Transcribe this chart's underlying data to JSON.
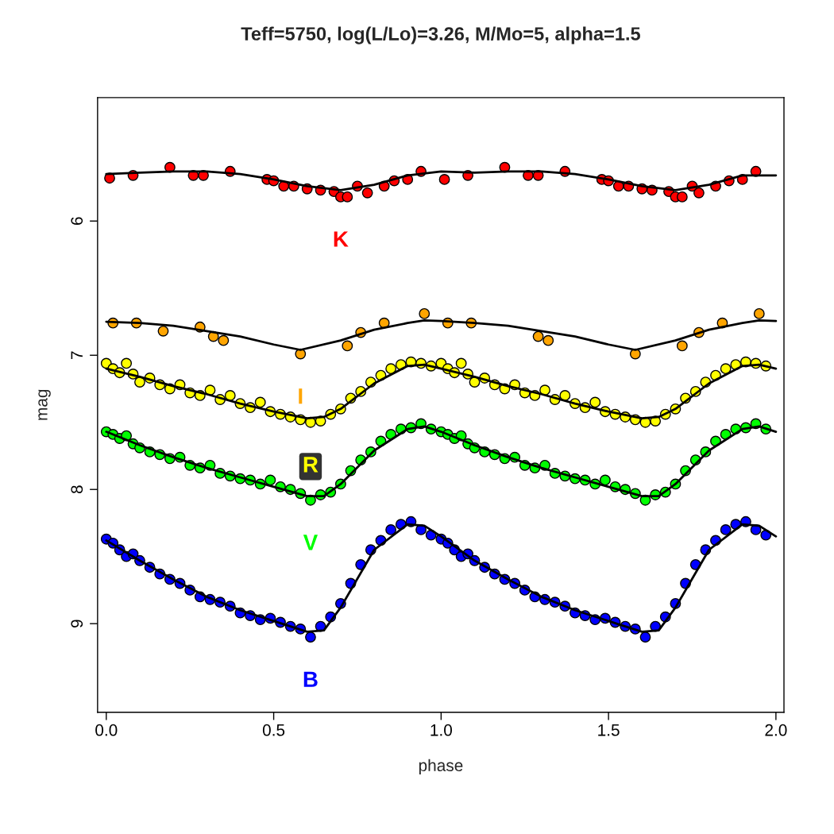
{
  "chart_data": {
    "type": "scatter",
    "title": "Teff=5750, log(L/Lo)=3.26, M/Mo=5, alpha=1.5",
    "xlabel": "phase",
    "ylabel": "mag",
    "xlim": [
      -0.026,
      2.024
    ],
    "ylim": [
      9.66,
      5.08
    ],
    "xticks": [
      {
        "value": 0,
        "label": "0.0"
      },
      {
        "value": 0.5,
        "label": "0.5"
      },
      {
        "value": 1,
        "label": "1.0"
      },
      {
        "value": 1.5,
        "label": "1.5"
      },
      {
        "value": 2,
        "label": "2.0"
      }
    ],
    "yticks": [
      6,
      7,
      8,
      9
    ],
    "grid": false,
    "legend": false,
    "series": [
      {
        "name": "K",
        "marker": "circle",
        "color": "#ff0000",
        "x": [
          0.01,
          0.08,
          0.19,
          0.26,
          0.29,
          0.37,
          0.48,
          0.5,
          0.53,
          0.56,
          0.6,
          0.64,
          0.68,
          0.7,
          0.72,
          0.75,
          0.78,
          0.83,
          0.86,
          0.9,
          0.94,
          1.01,
          1.08,
          1.19,
          1.26,
          1.29,
          1.37,
          1.48,
          1.5,
          1.53,
          1.56,
          1.6,
          1.63,
          1.68,
          1.7,
          1.72,
          1.75,
          1.77,
          1.82,
          1.86,
          1.9,
          1.94
        ],
        "values": [
          5.68,
          5.66,
          5.6,
          5.66,
          5.66,
          5.63,
          5.69,
          5.7,
          5.74,
          5.74,
          5.76,
          5.77,
          5.78,
          5.82,
          5.82,
          5.74,
          5.79,
          5.74,
          5.7,
          5.69,
          5.63,
          5.69,
          5.66,
          5.6,
          5.66,
          5.66,
          5.63,
          5.69,
          5.7,
          5.74,
          5.74,
          5.76,
          5.77,
          5.78,
          5.82,
          5.82,
          5.74,
          5.79,
          5.74,
          5.7,
          5.69,
          5.63
        ]
      },
      {
        "type": "line",
        "color": "#000000",
        "x": [
          0,
          0.1,
          0.2,
          0.3,
          0.4,
          0.5,
          0.6,
          0.7,
          0.8,
          0.9,
          1.0,
          1.1,
          1.2,
          1.3,
          1.4,
          1.5,
          1.6,
          1.7,
          1.8,
          1.9,
          2.0
        ],
        "values": [
          5.65,
          5.64,
          5.63,
          5.63,
          5.65,
          5.69,
          5.74,
          5.77,
          5.73,
          5.66,
          5.63,
          5.64,
          5.63,
          5.63,
          5.65,
          5.69,
          5.74,
          5.77,
          5.73,
          5.66,
          5.66
        ]
      },
      {
        "name": "I",
        "marker": "circle",
        "color": "#ffa500",
        "x": [
          0.02,
          0.09,
          0.17,
          0.28,
          0.32,
          0.35,
          0.58,
          0.72,
          0.76,
          0.83,
          0.95,
          1.02,
          1.09,
          1.29,
          1.32,
          1.58,
          1.72,
          1.77,
          1.84,
          1.95
        ],
        "values": [
          6.76,
          6.76,
          6.82,
          6.79,
          6.86,
          6.89,
          6.99,
          6.93,
          6.83,
          6.76,
          6.69,
          6.76,
          6.76,
          6.86,
          6.89,
          6.99,
          6.93,
          6.83,
          6.76,
          6.69
        ]
      },
      {
        "type": "line",
        "color": "#000000",
        "x": [
          0,
          0.1,
          0.2,
          0.3,
          0.4,
          0.5,
          0.58,
          0.7,
          0.8,
          0.9,
          0.95,
          1.0,
          1.1,
          1.2,
          1.3,
          1.4,
          1.5,
          1.58,
          1.7,
          1.8,
          1.9,
          1.95,
          2.0
        ],
        "values": [
          6.75,
          6.76,
          6.78,
          6.82,
          6.86,
          6.92,
          6.96,
          6.89,
          6.81,
          6.76,
          6.74,
          6.745,
          6.76,
          6.78,
          6.82,
          6.86,
          6.92,
          6.96,
          6.89,
          6.81,
          6.76,
          6.74,
          6.745
        ]
      },
      {
        "name": "R",
        "marker": "circle",
        "color": "#ffff00",
        "x": [
          0.0,
          0.02,
          0.04,
          0.06,
          0.08,
          0.1,
          0.13,
          0.16,
          0.19,
          0.22,
          0.25,
          0.28,
          0.31,
          0.34,
          0.37,
          0.4,
          0.43,
          0.46,
          0.49,
          0.52,
          0.55,
          0.58,
          0.61,
          0.64,
          0.67,
          0.7,
          0.73,
          0.76,
          0.79,
          0.82,
          0.85,
          0.88,
          0.91,
          0.94,
          0.97,
          1.0,
          1.02,
          1.04,
          1.06,
          1.08,
          1.1,
          1.13,
          1.16,
          1.19,
          1.22,
          1.25,
          1.28,
          1.31,
          1.34,
          1.37,
          1.4,
          1.43,
          1.46,
          1.49,
          1.52,
          1.55,
          1.58,
          1.61,
          1.64,
          1.67,
          1.7,
          1.73,
          1.76,
          1.79,
          1.82,
          1.85,
          1.88,
          1.91,
          1.94,
          1.97
        ],
        "values": [
          7.06,
          7.1,
          7.13,
          7.06,
          7.14,
          7.2,
          7.17,
          7.22,
          7.25,
          7.22,
          7.28,
          7.3,
          7.26,
          7.33,
          7.3,
          7.36,
          7.39,
          7.35,
          7.42,
          7.44,
          7.46,
          7.48,
          7.5,
          7.49,
          7.44,
          7.4,
          7.32,
          7.27,
          7.2,
          7.15,
          7.1,
          7.07,
          7.05,
          7.06,
          7.08,
          7.06,
          7.1,
          7.13,
          7.06,
          7.14,
          7.2,
          7.17,
          7.22,
          7.25,
          7.22,
          7.28,
          7.3,
          7.26,
          7.33,
          7.3,
          7.36,
          7.39,
          7.35,
          7.42,
          7.44,
          7.46,
          7.48,
          7.5,
          7.49,
          7.44,
          7.4,
          7.32,
          7.27,
          7.2,
          7.15,
          7.1,
          7.07,
          7.05,
          7.06,
          7.08
        ]
      },
      {
        "type": "line",
        "color": "#000000",
        "x": [
          0,
          0.1,
          0.2,
          0.3,
          0.4,
          0.5,
          0.6,
          0.65,
          0.7,
          0.8,
          0.9,
          0.95,
          1.0,
          1.1,
          1.2,
          1.3,
          1.4,
          1.5,
          1.6,
          1.65,
          1.7,
          1.8,
          1.9,
          1.95,
          2.0
        ],
        "values": [
          7.1,
          7.16,
          7.23,
          7.29,
          7.36,
          7.42,
          7.47,
          7.46,
          7.4,
          7.21,
          7.08,
          7.07,
          7.1,
          7.16,
          7.23,
          7.29,
          7.36,
          7.42,
          7.47,
          7.46,
          7.4,
          7.21,
          7.08,
          7.07,
          7.1
        ]
      },
      {
        "name": "V",
        "marker": "circle",
        "color": "#00ff00",
        "x": [
          0.0,
          0.02,
          0.04,
          0.06,
          0.08,
          0.1,
          0.13,
          0.16,
          0.19,
          0.22,
          0.25,
          0.28,
          0.31,
          0.34,
          0.37,
          0.4,
          0.43,
          0.46,
          0.49,
          0.52,
          0.55,
          0.58,
          0.61,
          0.64,
          0.67,
          0.7,
          0.73,
          0.76,
          0.79,
          0.82,
          0.85,
          0.88,
          0.91,
          0.94,
          0.97,
          1.0,
          1.02,
          1.04,
          1.06,
          1.08,
          1.1,
          1.13,
          1.16,
          1.19,
          1.22,
          1.25,
          1.28,
          1.31,
          1.34,
          1.37,
          1.4,
          1.43,
          1.46,
          1.49,
          1.52,
          1.55,
          1.58,
          1.61,
          1.64,
          1.67,
          1.7,
          1.73,
          1.76,
          1.79,
          1.82,
          1.85,
          1.88,
          1.91,
          1.94,
          1.97
        ],
        "values": [
          7.57,
          7.59,
          7.62,
          7.6,
          7.66,
          7.69,
          7.72,
          7.74,
          7.77,
          7.76,
          7.82,
          7.84,
          7.82,
          7.88,
          7.9,
          7.92,
          7.93,
          7.96,
          7.93,
          7.98,
          8.0,
          8.03,
          8.08,
          8.04,
          8.02,
          7.96,
          7.86,
          7.78,
          7.72,
          7.64,
          7.59,
          7.55,
          7.54,
          7.51,
          7.55,
          7.57,
          7.59,
          7.62,
          7.6,
          7.66,
          7.69,
          7.72,
          7.74,
          7.77,
          7.76,
          7.82,
          7.84,
          7.82,
          7.88,
          7.9,
          7.92,
          7.93,
          7.96,
          7.93,
          7.98,
          8.0,
          8.03,
          8.08,
          8.04,
          8.02,
          7.96,
          7.86,
          7.78,
          7.72,
          7.64,
          7.59,
          7.55,
          7.54,
          7.51,
          7.55
        ]
      },
      {
        "type": "line",
        "color": "#000000",
        "x": [
          0,
          0.1,
          0.2,
          0.3,
          0.4,
          0.5,
          0.6,
          0.65,
          0.7,
          0.8,
          0.9,
          0.95,
          1.0,
          1.1,
          1.2,
          1.3,
          1.4,
          1.5,
          1.6,
          1.65,
          1.7,
          1.8,
          1.9,
          1.95,
          2.0
        ],
        "values": [
          7.57,
          7.67,
          7.76,
          7.84,
          7.91,
          7.98,
          8.05,
          8.05,
          7.96,
          7.71,
          7.55,
          7.53,
          7.57,
          7.67,
          7.76,
          7.84,
          7.91,
          7.98,
          8.05,
          8.05,
          7.96,
          7.71,
          7.55,
          7.53,
          7.57
        ]
      },
      {
        "name": "B",
        "marker": "circle",
        "color": "#0000ff",
        "x": [
          0.0,
          0.02,
          0.04,
          0.06,
          0.08,
          0.1,
          0.13,
          0.16,
          0.19,
          0.22,
          0.25,
          0.28,
          0.31,
          0.34,
          0.37,
          0.4,
          0.43,
          0.46,
          0.49,
          0.52,
          0.55,
          0.58,
          0.61,
          0.64,
          0.67,
          0.7,
          0.73,
          0.76,
          0.79,
          0.82,
          0.85,
          0.88,
          0.91,
          0.94,
          0.97,
          1.0,
          1.02,
          1.04,
          1.06,
          1.08,
          1.1,
          1.13,
          1.16,
          1.19,
          1.22,
          1.25,
          1.28,
          1.31,
          1.34,
          1.37,
          1.4,
          1.43,
          1.46,
          1.49,
          1.52,
          1.55,
          1.58,
          1.61,
          1.64,
          1.67,
          1.7,
          1.73,
          1.76,
          1.79,
          1.82,
          1.85,
          1.88,
          1.91,
          1.94,
          1.97
        ],
        "values": [
          8.37,
          8.4,
          8.45,
          8.5,
          8.48,
          8.53,
          8.58,
          8.63,
          8.67,
          8.7,
          8.75,
          8.8,
          8.82,
          8.84,
          8.87,
          8.92,
          8.94,
          8.97,
          8.96,
          8.99,
          9.02,
          9.04,
          9.1,
          9.02,
          8.95,
          8.85,
          8.7,
          8.56,
          8.45,
          8.38,
          8.3,
          8.26,
          8.24,
          8.3,
          8.34,
          8.37,
          8.4,
          8.45,
          8.5,
          8.48,
          8.53,
          8.58,
          8.63,
          8.67,
          8.7,
          8.75,
          8.8,
          8.82,
          8.84,
          8.87,
          8.92,
          8.94,
          8.97,
          8.96,
          8.99,
          9.02,
          9.04,
          9.1,
          9.02,
          8.95,
          8.85,
          8.7,
          8.56,
          8.45,
          8.38,
          8.3,
          8.26,
          8.24,
          8.3,
          8.34
        ]
      },
      {
        "type": "line",
        "color": "#000000",
        "x": [
          0,
          0.1,
          0.2,
          0.3,
          0.4,
          0.5,
          0.6,
          0.65,
          0.7,
          0.8,
          0.9,
          0.95,
          1.0,
          1.1,
          1.2,
          1.3,
          1.4,
          1.5,
          1.6,
          1.65,
          1.7,
          1.8,
          1.9,
          1.95,
          2.0
        ],
        "values": [
          8.38,
          8.53,
          8.67,
          8.8,
          8.9,
          8.98,
          9.06,
          9.05,
          8.88,
          8.45,
          8.26,
          8.27,
          8.35,
          8.53,
          8.67,
          8.8,
          8.9,
          8.98,
          9.06,
          9.05,
          8.88,
          8.45,
          8.26,
          8.27,
          8.35
        ]
      }
    ]
  }
}
